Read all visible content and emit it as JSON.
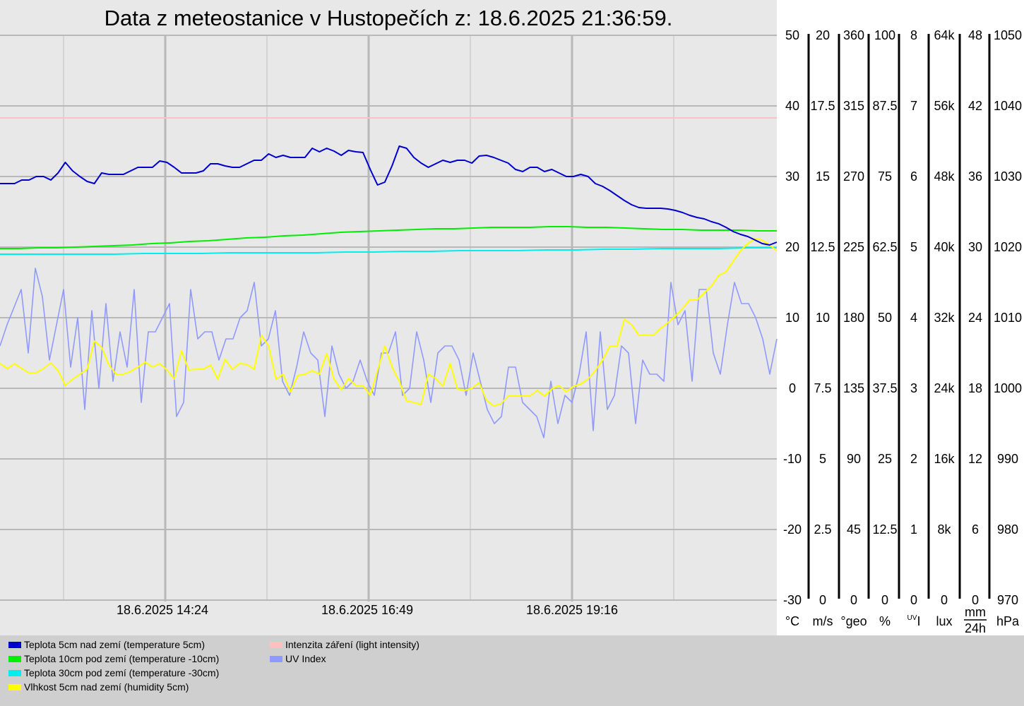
{
  "chart_data": {
    "type": "line",
    "title": "Data z meteostanice v Hustopečích z: 18.6.2025 21:36:59.",
    "grid": true,
    "colors": {
      "plot_bg": "#e8e8e8",
      "title_bg": "#e8e8e8",
      "legend_bg": "#cfcfcf",
      "major_grid": "#b8b8b8",
      "minor_grid": "#d4d4d4"
    },
    "x_tick_labels": [
      "18.6.2025 14:24",
      "18.6.2025 16:49",
      "18.6.2025 19:16"
    ],
    "axes": [
      {
        "unit": "°C",
        "ticks": [
          "50",
          "40",
          "30",
          "20",
          "10",
          "0",
          "-10",
          "-20",
          "-30"
        ]
      },
      {
        "unit": "m/s",
        "ticks": [
          "20",
          "17.5",
          "15",
          "12.5",
          "10",
          "7.5",
          "5",
          "2.5",
          "0"
        ]
      },
      {
        "unit": "°geo",
        "ticks": [
          "360",
          "315",
          "270",
          "225",
          "180",
          "135",
          "90",
          "45",
          "0"
        ]
      },
      {
        "unit": "%",
        "ticks": [
          "100",
          "87.5",
          "75",
          "62.5",
          "50",
          "37.5",
          "25",
          "12.5",
          "0"
        ]
      },
      {
        "unit": "UVI",
        "unit_sup": "UV",
        "unit_main": "I",
        "ticks": [
          "8",
          "7",
          "6",
          "5",
          "4",
          "3",
          "2",
          "1",
          "0"
        ]
      },
      {
        "unit": "lux",
        "ticks": [
          "64k",
          "56k",
          "48k",
          "40k",
          "32k",
          "24k",
          "16k",
          "8k",
          "0"
        ]
      },
      {
        "unit": "mm/24h",
        "unit_num": "mm",
        "unit_den": "24h",
        "ticks": [
          "48",
          "42",
          "36",
          "30",
          "24",
          "18",
          "12",
          "6",
          "0"
        ]
      },
      {
        "unit": "hPa",
        "ticks": [
          "1050",
          "1040",
          "1030",
          "1020",
          "1010",
          "1000",
          "990",
          "980",
          "970"
        ]
      }
    ],
    "y_range_celsius": [
      -30,
      50
    ],
    "series": [
      {
        "name": "Teplota 5cm nad zemí (temperature 5cm)",
        "color": "#0000cc",
        "values": [
          29,
          29,
          29,
          29.5,
          29.5,
          30,
          30,
          29.5,
          30.5,
          32,
          30.8,
          30,
          29.3,
          29,
          30.5,
          30.3,
          30.3,
          30.3,
          30.8,
          31.3,
          31.3,
          31.3,
          32.2,
          32,
          31.3,
          30.5,
          30.5,
          30.5,
          30.8,
          31.8,
          31.8,
          31.5,
          31.3,
          31.3,
          31.8,
          32.3,
          32.3,
          33.2,
          32.7,
          33,
          32.7,
          32.7,
          32.7,
          34,
          33.5,
          34,
          33.6,
          33,
          33.7,
          33.5,
          33.4,
          31,
          28.8,
          29.2,
          31.5,
          34.3,
          34,
          32.7,
          31.9,
          31.3,
          31.8,
          32.3,
          32,
          32.3,
          32.3,
          31.9,
          32.9,
          33,
          32.7,
          32.3,
          31.9,
          31,
          30.7,
          31.3,
          31.3,
          30.7,
          31,
          30.5,
          30,
          30,
          30.3,
          30,
          29,
          28.6,
          28,
          27.3,
          26.6,
          26,
          25.6,
          25.5,
          25.5,
          25.5,
          25.4,
          25.2,
          24.9,
          24.5,
          24.2,
          24,
          23.6,
          23.3,
          22.8,
          22.2,
          21.8,
          21.5,
          21,
          20.5,
          20.3,
          20.7
        ]
      },
      {
        "name": "Teplota 10cm pod zemí (temperature -10cm)",
        "color": "#00ee00",
        "values": [
          19.8,
          19.8,
          19.9,
          19.9,
          20,
          20.1,
          20.2,
          20.3,
          20.5,
          20.6,
          20.8,
          20.9,
          21.1,
          21.3,
          21.4,
          21.6,
          21.7,
          21.9,
          22.1,
          22.2,
          22.3,
          22.4,
          22.5,
          22.6,
          22.6,
          22.7,
          22.8,
          22.8,
          22.8,
          22.9,
          22.9,
          22.8,
          22.8,
          22.7,
          22.6,
          22.5,
          22.5,
          22.4,
          22.4,
          22.4,
          22.3,
          22.3
        ]
      },
      {
        "name": "Teplota 30cm pod zemí (temperature -30cm)",
        "color": "#00eeee",
        "values": [
          19,
          19,
          19,
          19,
          19,
          19.1,
          19.1,
          19.1,
          19.2,
          19.2,
          19.2,
          19.2,
          19.3,
          19.3,
          19.4,
          19.4,
          19.5,
          19.5,
          19.5,
          19.6,
          19.6,
          19.7,
          19.7,
          19.8,
          19.8,
          19.8,
          19.9,
          19.9
        ]
      },
      {
        "name": "Vlhkost 5cm nad zemí (humidity 5cm)",
        "color": "#ffff00",
        "values": [
          3.5,
          2.8,
          3.5,
          2.8,
          2.2,
          2.2,
          2.8,
          3.6,
          2.5,
          0.4,
          1.3,
          2,
          2.7,
          6.7,
          5.8,
          3.3,
          2,
          2,
          2.4,
          3,
          3.7,
          3,
          3.5,
          2.6,
          1.3,
          5.3,
          2.6,
          2.7,
          2.7,
          3.3,
          1.3,
          4.1,
          2.7,
          3.5,
          3.4,
          2.7,
          7.5,
          6,
          1.3,
          2,
          -0.5,
          1.8,
          2,
          2.5,
          2,
          4.9,
          1.3,
          -0.2,
          1.4,
          0.4,
          0.4,
          -1,
          2.5,
          6,
          3,
          1,
          -1.8,
          -2,
          -2.3,
          2,
          1.4,
          0.3,
          3.5,
          -0.1,
          -0.3,
          0,
          0.8,
          -1.7,
          -2.5,
          -2.2,
          -1.1,
          -1.1,
          -1.1,
          -1.1,
          -0.3,
          -1.1,
          -0.1,
          0.4,
          -0.5,
          0.3,
          0.6,
          1.3,
          2.5,
          4,
          6,
          6,
          9.8,
          9,
          7.5,
          7.5,
          7.5,
          8.5,
          9.3,
          10.2,
          11.3,
          12.5,
          12.5,
          13.5,
          14.5,
          16,
          16.5,
          18,
          19.5,
          20.5,
          21.2,
          21,
          20.3,
          19.5
        ]
      },
      {
        "name": "Intenzita záření (light intensity)",
        "color": "#ffc0c0",
        "values": [
          38.3,
          38.3
        ]
      },
      {
        "name": "UV Index",
        "color": "#9099ff",
        "values": [
          6,
          9,
          11.5,
          14,
          5,
          17,
          13,
          4,
          9,
          14,
          3,
          10,
          -3,
          11,
          0,
          12,
          1,
          8,
          3,
          14,
          -2,
          8,
          8,
          10,
          12,
          -4,
          -2,
          14,
          7,
          8,
          8,
          4,
          7,
          7,
          10,
          11,
          15,
          6,
          7,
          11,
          1,
          -1,
          3,
          8,
          5,
          4,
          -4,
          6,
          2,
          0,
          1,
          4,
          1,
          -1,
          5,
          5,
          8,
          -1,
          0,
          8,
          4,
          -2,
          5,
          6,
          6,
          4,
          -1,
          5,
          1,
          -3,
          -5,
          -4,
          3,
          3,
          -2,
          -3,
          -4,
          -7,
          1,
          -5,
          -1,
          -2,
          2,
          8,
          -6,
          8,
          -3,
          -1,
          6,
          5,
          -5,
          4,
          2,
          2,
          1,
          15,
          9,
          11,
          1,
          14,
          14,
          5,
          2,
          9,
          15,
          12,
          12,
          10,
          7,
          2,
          7
        ]
      }
    ]
  }
}
